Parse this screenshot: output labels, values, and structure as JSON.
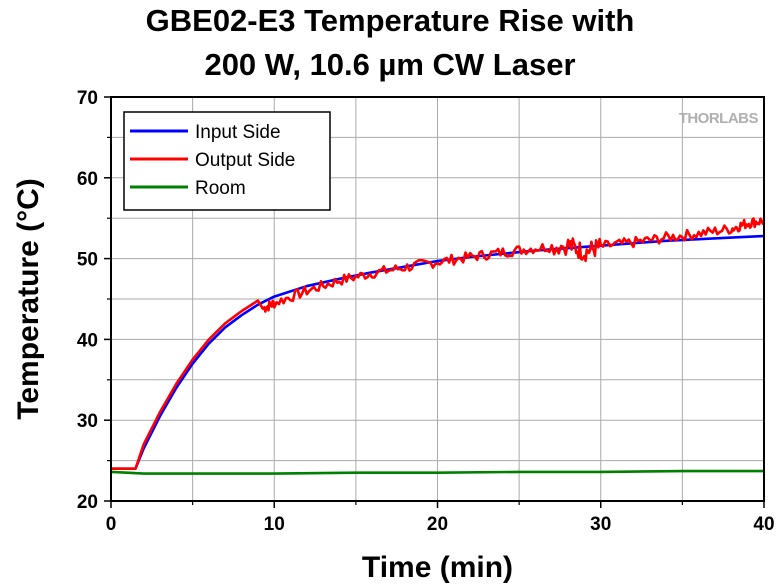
{
  "chart_data": {
    "type": "line",
    "title_line1": "GBE02-E3 Temperature Rise with",
    "title_line2": "200 W, 10.6 µm CW Laser",
    "xlabel": "Time (min)",
    "ylabel": "Temperature (°C)",
    "xlim": [
      0,
      40
    ],
    "ylim": [
      20,
      70
    ],
    "xticks": [
      0,
      10,
      20,
      30,
      40
    ],
    "yticks": [
      20,
      30,
      40,
      50,
      60,
      70
    ],
    "grid": true,
    "legend_position": "top-left",
    "watermark": "THORLABS",
    "series": [
      {
        "name": "Input Side",
        "color": "#0000ff",
        "x": [
          0,
          1.5,
          2,
          3,
          4,
          5,
          6,
          7,
          8,
          9,
          10,
          12,
          14,
          16,
          18,
          20,
          22,
          24,
          26,
          28,
          30,
          32,
          34,
          36,
          38,
          40
        ],
        "y": [
          24.0,
          24.0,
          26.5,
          30.5,
          34.0,
          37.0,
          39.5,
          41.5,
          43.0,
          44.3,
          45.3,
          46.6,
          47.5,
          48.3,
          49.0,
          49.7,
          50.2,
          50.6,
          51.0,
          51.3,
          51.6,
          51.9,
          52.2,
          52.4,
          52.6,
          52.8
        ]
      },
      {
        "name": "Output Side",
        "color": "#ff0000",
        "x": [
          0,
          1.5,
          2,
          3,
          4,
          5,
          6,
          7,
          8,
          9,
          9.3,
          10,
          12,
          14,
          16,
          18,
          20,
          22,
          24,
          26,
          28,
          29,
          30,
          32,
          34,
          36,
          38,
          39,
          40
        ],
        "y": [
          24.0,
          24.0,
          27.0,
          31.0,
          34.5,
          37.5,
          40.0,
          42.0,
          43.5,
          44.8,
          43.8,
          44.5,
          46.0,
          47.3,
          48.2,
          48.9,
          49.6,
          50.2,
          50.8,
          51.3,
          51.7,
          50.8,
          51.5,
          52.0,
          52.6,
          53.1,
          53.7,
          54.4,
          54.7
        ]
      },
      {
        "name": "Room",
        "color": "#008000",
        "x": [
          0,
          1,
          2,
          5,
          10,
          15,
          20,
          25,
          30,
          35,
          40
        ],
        "y": [
          23.6,
          23.5,
          23.4,
          23.4,
          23.4,
          23.5,
          23.5,
          23.6,
          23.6,
          23.7,
          23.7
        ]
      }
    ]
  }
}
